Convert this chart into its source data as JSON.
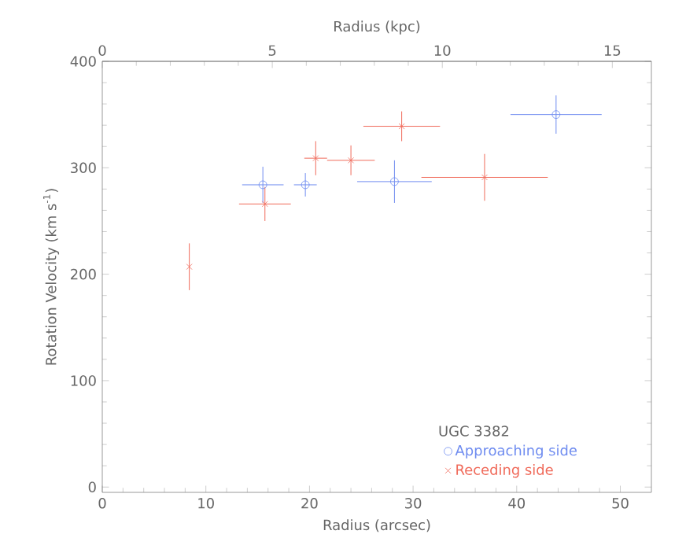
{
  "chart_data": {
    "type": "scatter",
    "xlabel": "Radius (arcsec)",
    "x2label": "Radius (kpc)",
    "ylabel": "Rotation Velocity (km s$^{-1}$)",
    "legend_title": "UGC 3382",
    "legend": "bottom right",
    "grid": false,
    "xlim": [
      0,
      53
    ],
    "xticks": [
      0,
      10,
      20,
      30,
      40,
      50
    ],
    "ylim": [
      -5,
      400
    ],
    "yticks": [
      0,
      100,
      200,
      300,
      400
    ],
    "x2lim": [
      0,
      16.15
    ],
    "x2ticks": [
      0,
      5,
      10,
      15
    ],
    "series": [
      {
        "name": "Approaching side",
        "color": "#6f8cf0",
        "marker": "circle",
        "x": [
          15.5,
          19.6,
          28.2,
          43.8
        ],
        "values": [
          284,
          284,
          287,
          350
        ],
        "errors": [
          17,
          11,
          20,
          18
        ],
        "xerrors": [
          2,
          1.1,
          3.6,
          4.4
        ]
      },
      {
        "name": "Receding side",
        "color": "#f06a5a",
        "marker": "cross",
        "x": [
          8.4,
          15.7,
          20.6,
          24.0,
          28.9,
          36.9
        ],
        "values": [
          207,
          266,
          309,
          307,
          339,
          291
        ],
        "errors": [
          22,
          16,
          16,
          14,
          14,
          22
        ],
        "xerrors": [
          null,
          2.5,
          1.1,
          2.3,
          3.7,
          6.1
        ]
      }
    ]
  }
}
